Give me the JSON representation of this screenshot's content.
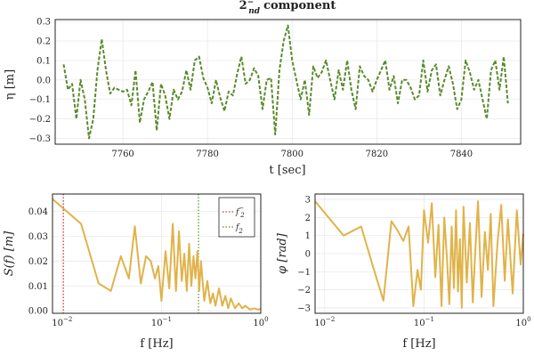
{
  "chart_data": [
    {
      "type": "line",
      "title_base": "2",
      "title_sup": "−",
      "title_sub": "nd",
      "title_rest": "component",
      "xlabel": "t [sec]",
      "ylabel": "η [m]",
      "xlim": [
        7744,
        7854
      ],
      "ylim": [
        -0.33,
        0.31
      ],
      "xticks": [
        7760,
        7780,
        7800,
        7820,
        7840
      ],
      "yticks": [
        -0.3,
        -0.2,
        -0.1,
        0.0,
        0.1,
        0.2,
        0.3
      ],
      "ytick_labels": [
        "−0.3",
        "−0.2",
        "−0.1",
        "0.0",
        "0.1",
        "0.2",
        "0.3"
      ],
      "series": [
        {
          "color": "#5b8a2c",
          "dash": "dashed",
          "x": [
            7746.0,
            7747.0,
            7748.0,
            7749.0,
            7750.0,
            7751.0,
            7752.0,
            7753.0,
            7754.0,
            7755.0,
            7756.0,
            7757.0,
            7758.0,
            7759.0,
            7760.0,
            7761.0,
            7762.0,
            7763.0,
            7764.0,
            7765.0,
            7766.0,
            7767.0,
            7768.0,
            7769.0,
            7770.0,
            7771.0,
            7772.0,
            7773.0,
            7774.0,
            7775.0,
            7776.0,
            7777.0,
            7778.0,
            7779.0,
            7780.0,
            7781.0,
            7782.0,
            7783.0,
            7784.0,
            7785.0,
            7786.0,
            7787.0,
            7788.0,
            7789.0,
            7790.0,
            7791.0,
            7792.0,
            7793.0,
            7794.0,
            7795.0,
            7796.0,
            7797.0,
            7798.0,
            7799.0,
            7800.0,
            7801.0,
            7802.0,
            7803.0,
            7804.0,
            7805.0,
            7806.0,
            7807.0,
            7808.0,
            7809.0,
            7810.0,
            7811.0,
            7812.0,
            7813.0,
            7814.0,
            7815.0,
            7816.0,
            7817.0,
            7818.0,
            7819.0,
            7820.0,
            7821.0,
            7822.0,
            7823.0,
            7824.0,
            7825.0,
            7826.0,
            7827.0,
            7828.0,
            7829.0,
            7830.0,
            7831.0,
            7832.0,
            7833.0,
            7834.0,
            7835.0,
            7836.0,
            7837.0,
            7838.0,
            7839.0,
            7840.0,
            7841.0,
            7842.0,
            7843.0,
            7844.0,
            7845.0,
            7846.0,
            7847.0,
            7848.0,
            7849.0,
            7850.0,
            7851.0
          ],
          "y": [
            0.08,
            -0.05,
            -0.02,
            -0.2,
            0.0,
            -0.1,
            -0.3,
            -0.2,
            0.05,
            0.21,
            0.05,
            -0.07,
            -0.04,
            -0.05,
            -0.06,
            -0.05,
            -0.13,
            0.05,
            -0.22,
            -0.1,
            -0.06,
            -0.01,
            -0.26,
            -0.02,
            -0.08,
            -0.2,
            -0.05,
            -0.1,
            -0.06,
            0.05,
            -0.05,
            0.1,
            0.12,
            0.01,
            -0.04,
            -0.12,
            0.0,
            -0.09,
            -0.16,
            -0.06,
            -0.08,
            0.03,
            0.12,
            -0.02,
            0.0,
            0.06,
            0.02,
            -0.15,
            0.0,
            0.01,
            -0.28,
            0.05,
            0.2,
            0.28,
            0.1,
            0.0,
            -0.1,
            0.0,
            -0.18,
            0.07,
            0.01,
            0.04,
            0.1,
            0.0,
            -0.1,
            0.05,
            -0.05,
            0.1,
            -0.05,
            -0.15,
            0.07,
            0.02,
            0.0,
            -0.06,
            0.0,
            0.05,
            0.1,
            -0.05,
            0.02,
            -0.12,
            0.0,
            0.0,
            -0.04,
            -0.1,
            -0.08,
            0.1,
            -0.06,
            0.05,
            0.08,
            -0.08,
            0.0,
            0.07,
            -0.02,
            -0.15,
            -0.1,
            0.1,
            0.04,
            -0.05,
            0.0,
            -0.1,
            -0.2,
            0.05,
            0.1,
            -0.05,
            0.12,
            -0.12
          ]
        }
      ],
      "grid": true
    },
    {
      "type": "line",
      "xlabel": "f [Hz]",
      "ylabel": "S(f) [m]",
      "xscale": "log",
      "xlim": [
        0.008,
        1.0
      ],
      "ylim": [
        -0.001,
        0.047
      ],
      "xticks": [
        0.01,
        0.1,
        1.0
      ],
      "xtick_base": "10",
      "xtick_exps": [
        "−2",
        "−1",
        "0"
      ],
      "yticks": [
        0.0,
        0.01,
        0.02,
        0.03,
        0.04
      ],
      "ytick_labels": [
        "0.00",
        "0.01",
        "0.02",
        "0.03",
        "0.04"
      ],
      "series": [
        {
          "color": "#e0b34a",
          "x": [
            0.008,
            0.0155,
            0.0233,
            0.031,
            0.039,
            0.047,
            0.054,
            0.062,
            0.07,
            0.078,
            0.086,
            0.093,
            0.1,
            0.11,
            0.12,
            0.13,
            0.14,
            0.15,
            0.16,
            0.17,
            0.18,
            0.19,
            0.2,
            0.21,
            0.22,
            0.23,
            0.24,
            0.25,
            0.27,
            0.29,
            0.31,
            0.33,
            0.35,
            0.38,
            0.41,
            0.44,
            0.47,
            0.5,
            0.55,
            0.6,
            0.65,
            0.7,
            0.78,
            0.86,
            0.94,
            1.0
          ],
          "y": [
            0.045,
            0.035,
            0.011,
            0.008,
            0.022,
            0.013,
            0.034,
            0.011,
            0.022,
            0.02,
            0.013,
            0.018,
            0.004,
            0.024,
            0.009,
            0.035,
            0.008,
            0.032,
            0.012,
            0.023,
            0.008,
            0.027,
            0.01,
            0.022,
            0.013,
            0.024,
            0.008,
            0.02,
            0.004,
            0.012,
            0.003,
            0.007,
            0.002,
            0.009,
            0.002,
            0.006,
            0.001,
            0.005,
            0.001,
            0.003,
            0.001,
            0.002,
            0.0005,
            0.001,
            0.0005,
            0.0008
          ]
        }
      ],
      "vlines": [
        {
          "x": 0.0103,
          "color": "#c9302c",
          "label_base": "f",
          "label_sup": "−",
          "label_sub": "2"
        },
        {
          "x": 0.236,
          "color": "#5b8a2c",
          "label_base": "f",
          "label_sup": "",
          "label_sub": "2"
        }
      ],
      "legend_placement": "top-right",
      "grid": true
    },
    {
      "type": "line",
      "xlabel": "f [Hz]",
      "ylabel": "φ [rad]",
      "xscale": "log",
      "xlim": [
        0.008,
        1.0
      ],
      "ylim": [
        -3.3,
        3.3
      ],
      "xticks": [
        0.01,
        0.1,
        1.0
      ],
      "xtick_base": "10",
      "xtick_exps": [
        "−2",
        "−1",
        "0"
      ],
      "yticks": [
        -3,
        -2,
        -1,
        0,
        1,
        2,
        3
      ],
      "ytick_labels": [
        "−3",
        "−2",
        "−1",
        "0",
        "1",
        "2",
        "3"
      ],
      "series": [
        {
          "color": "#e0b34a",
          "x": [
            0.008,
            0.0155,
            0.0233,
            0.031,
            0.039,
            0.047,
            0.054,
            0.062,
            0.07,
            0.078,
            0.086,
            0.093,
            0.1,
            0.11,
            0.12,
            0.13,
            0.14,
            0.15,
            0.16,
            0.17,
            0.18,
            0.19,
            0.2,
            0.21,
            0.22,
            0.23,
            0.24,
            0.25,
            0.27,
            0.29,
            0.31,
            0.33,
            0.35,
            0.38,
            0.41,
            0.44,
            0.47,
            0.5,
            0.55,
            0.6,
            0.65,
            0.7,
            0.78,
            0.86,
            0.94,
            1.0
          ],
          "y": [
            2.9,
            1.0,
            1.5,
            -0.8,
            -2.6,
            1.8,
            1.3,
            0.7,
            1.5,
            -2.9,
            -0.9,
            -2.0,
            2.4,
            0.6,
            2.8,
            -1.3,
            1.6,
            -2.9,
            2.0,
            -0.2,
            -2.8,
            1.5,
            -1.9,
            2.4,
            -2.1,
            0.8,
            -3.0,
            2.6,
            -1.6,
            1.7,
            -2.7,
            0.4,
            2.9,
            -2.4,
            1.2,
            -0.9,
            2.2,
            -2.9,
            0.6,
            2.7,
            -1.5,
            1.9,
            -2.2,
            2.4,
            -0.6,
            1.1
          ]
        }
      ],
      "grid": true
    }
  ]
}
